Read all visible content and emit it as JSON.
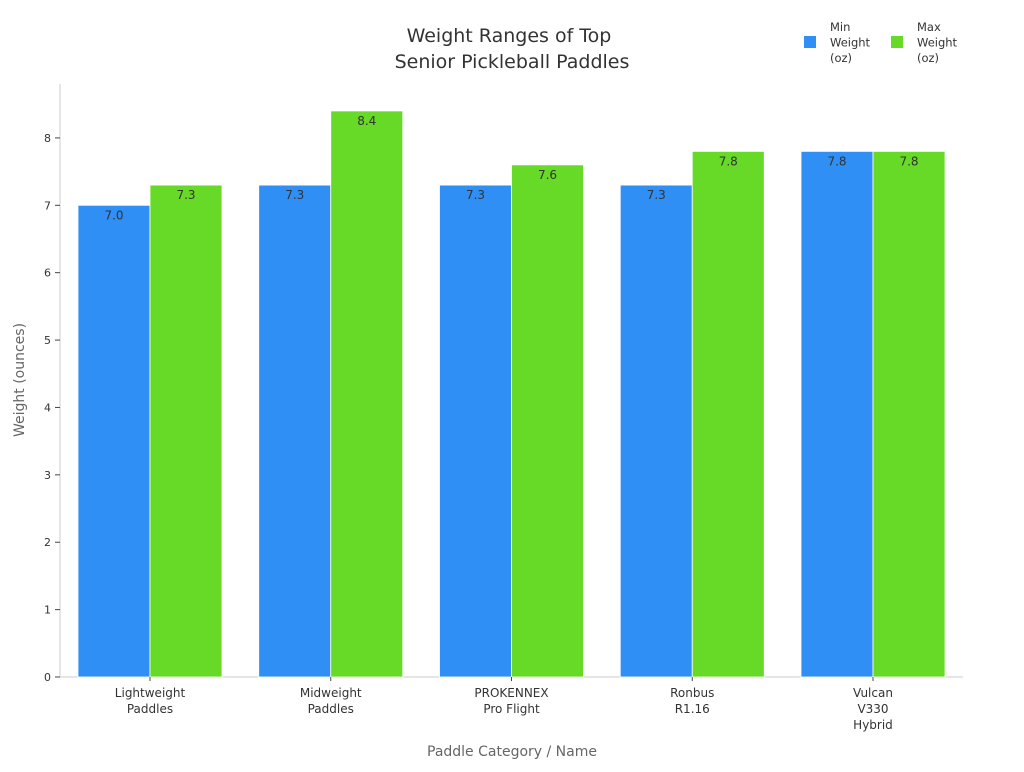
{
  "chart_data": {
    "type": "bar",
    "title_lines": [
      "Weight Ranges of Top",
      "Senior Pickleball Paddles"
    ],
    "xlabel": "Paddle Category / Name",
    "ylabel": "Weight (ounces)",
    "ylim": [
      0,
      8.8
    ],
    "yticks": [
      0,
      1,
      2,
      3,
      4,
      5,
      6,
      7,
      8
    ],
    "grid": false,
    "legend_position": "top-right",
    "categories": [
      [
        "Lightweight",
        "Paddles"
      ],
      [
        "Midweight",
        "Paddles"
      ],
      [
        "PROKENNEX",
        "Pro Flight"
      ],
      [
        "Ronbus",
        "R1.16"
      ],
      [
        "Vulcan",
        "V330",
        "Hybrid"
      ]
    ],
    "series": [
      {
        "name_lines": [
          "Min",
          "Weight",
          "(oz)"
        ],
        "color": "#2f8ff5",
        "values": [
          7.0,
          7.3,
          7.3,
          7.3,
          7.8
        ],
        "labels": [
          "7.0",
          "7.3",
          "7.3",
          "7.3",
          "7.8"
        ]
      },
      {
        "name_lines": [
          "Max",
          "Weight",
          "(oz)"
        ],
        "color": "#66da26",
        "values": [
          7.3,
          8.4,
          7.6,
          7.8,
          7.8
        ],
        "labels": [
          "7.3",
          "8.4",
          "7.6",
          "7.8",
          "7.8"
        ]
      }
    ]
  }
}
